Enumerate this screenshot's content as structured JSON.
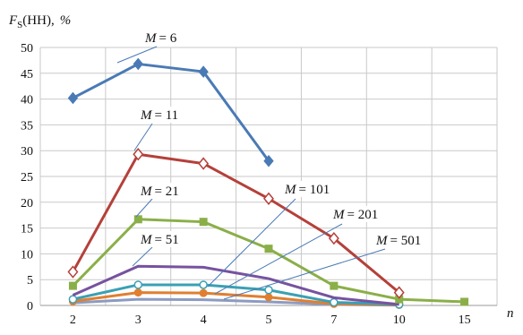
{
  "chart_data": {
    "type": "line",
    "title": "",
    "ylabel": {
      "var": "F",
      "sub": "S",
      "rest": "(HH),",
      "unit": "%"
    },
    "xlabel": "n",
    "categories": [
      "2",
      "3",
      "4",
      "5",
      "7",
      "10",
      "15"
    ],
    "ylim": [
      0,
      50
    ],
    "yticks": [
      0,
      5,
      10,
      15,
      20,
      25,
      30,
      35,
      40,
      45,
      50
    ],
    "grid": true,
    "series": [
      {
        "name": "M = 6",
        "color": "#4a7ab5",
        "marker": "diamond-filled",
        "values": [
          40.2,
          46.8,
          45.3,
          28.0,
          null,
          null,
          null
        ]
      },
      {
        "name": "M = 11",
        "color": "#b5403a",
        "marker": "diamond-open",
        "values": [
          6.5,
          29.3,
          27.5,
          20.7,
          13.0,
          2.5,
          null
        ]
      },
      {
        "name": "M = 21",
        "color": "#8aaf48",
        "marker": "square-filled",
        "values": [
          3.8,
          16.7,
          16.2,
          11.0,
          3.8,
          1.2,
          0.7
        ]
      },
      {
        "name": "M = 51",
        "color": "#7652a0",
        "marker": "none",
        "values": [
          2.0,
          7.6,
          7.4,
          5.2,
          1.5,
          0.2,
          null
        ]
      },
      {
        "name": "M = 101",
        "color": "#3aa0b4",
        "marker": "circle-open",
        "values": [
          1.2,
          4.0,
          4.0,
          3.0,
          0.6,
          0.2,
          null
        ]
      },
      {
        "name": "M = 201",
        "color": "#e07f30",
        "marker": "circle-filled",
        "values": [
          0.8,
          2.5,
          2.4,
          1.6,
          0.3,
          0.1,
          null
        ]
      },
      {
        "name": "M = 501",
        "color": "#8c9bc0",
        "marker": "none",
        "values": [
          0.5,
          1.2,
          1.1,
          0.7,
          0.2,
          0.05,
          null
        ]
      }
    ],
    "annotations": [
      {
        "var": "M",
        "text": "= 6",
        "series": 0
      },
      {
        "var": "M",
        "text": "= 11",
        "series": 1
      },
      {
        "var": "M",
        "text": "= 21",
        "series": 2
      },
      {
        "var": "M",
        "text": "= 51",
        "series": 3
      },
      {
        "var": "M",
        "text": "= 101",
        "series": 4
      },
      {
        "var": "M",
        "text": "= 201",
        "series": 5
      },
      {
        "var": "M",
        "text": "= 501",
        "series": 6
      }
    ]
  }
}
